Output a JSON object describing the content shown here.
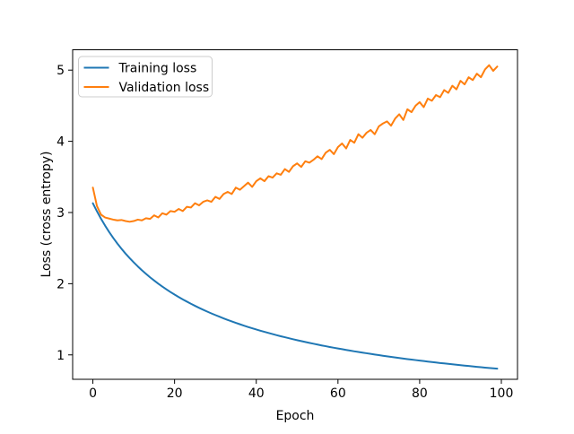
{
  "chart_data": {
    "type": "line",
    "title": "",
    "xlabel": "Epoch",
    "ylabel": "Loss (cross entropy)",
    "xlim": [
      -4.95,
      103.95
    ],
    "ylim": [
      0.657,
      5.286
    ],
    "xticks": [
      0,
      20,
      40,
      60,
      80,
      100
    ],
    "yticks": [
      1,
      2,
      3,
      4,
      5
    ],
    "grid": false,
    "legend_position": "upper left",
    "x": [
      0,
      1,
      2,
      3,
      4,
      5,
      6,
      7,
      8,
      9,
      10,
      11,
      12,
      13,
      14,
      15,
      16,
      17,
      18,
      19,
      20,
      21,
      22,
      23,
      24,
      25,
      26,
      27,
      28,
      29,
      30,
      31,
      32,
      33,
      34,
      35,
      36,
      37,
      38,
      39,
      40,
      41,
      42,
      43,
      44,
      45,
      46,
      47,
      48,
      49,
      50,
      51,
      52,
      53,
      54,
      55,
      56,
      57,
      58,
      59,
      60,
      61,
      62,
      63,
      64,
      65,
      66,
      67,
      68,
      69,
      70,
      71,
      72,
      73,
      74,
      75,
      76,
      77,
      78,
      79,
      80,
      81,
      82,
      83,
      84,
      85,
      86,
      87,
      88,
      89,
      90,
      91,
      92,
      93,
      94,
      95,
      96,
      97,
      98,
      99
    ],
    "series": [
      {
        "name": "Training loss",
        "color": "#1f77b4",
        "values": [
          3.13,
          3.017,
          2.912,
          2.815,
          2.725,
          2.642,
          2.564,
          2.492,
          2.423,
          2.36,
          2.3,
          2.243,
          2.189,
          2.139,
          2.09,
          2.045,
          2.001,
          1.96,
          1.921,
          1.883,
          1.847,
          1.813,
          1.78,
          1.749,
          1.718,
          1.689,
          1.661,
          1.634,
          1.608,
          1.583,
          1.559,
          1.536,
          1.513,
          1.491,
          1.47,
          1.45,
          1.43,
          1.411,
          1.392,
          1.374,
          1.357,
          1.34,
          1.324,
          1.308,
          1.292,
          1.277,
          1.262,
          1.248,
          1.234,
          1.22,
          1.207,
          1.194,
          1.181,
          1.169,
          1.157,
          1.145,
          1.133,
          1.122,
          1.111,
          1.1,
          1.09,
          1.08,
          1.07,
          1.06,
          1.05,
          1.041,
          1.032,
          1.023,
          1.014,
          1.005,
          0.997,
          0.988,
          0.98,
          0.972,
          0.964,
          0.956,
          0.949,
          0.941,
          0.934,
          0.927,
          0.92,
          0.913,
          0.906,
          0.899,
          0.893,
          0.886,
          0.88,
          0.874,
          0.868,
          0.861,
          0.855,
          0.849,
          0.844,
          0.838,
          0.832,
          0.827,
          0.821,
          0.816,
          0.811,
          0.806
        ]
      },
      {
        "name": "Validation loss",
        "color": "#ff7f0e",
        "values": [
          3.35,
          3.09,
          2.97,
          2.93,
          2.915,
          2.9,
          2.89,
          2.895,
          2.88,
          2.87,
          2.88,
          2.9,
          2.89,
          2.92,
          2.91,
          2.96,
          2.93,
          2.99,
          2.97,
          3.02,
          3.01,
          3.05,
          3.02,
          3.08,
          3.07,
          3.13,
          3.1,
          3.15,
          3.17,
          3.15,
          3.22,
          3.19,
          3.26,
          3.29,
          3.26,
          3.35,
          3.32,
          3.37,
          3.42,
          3.36,
          3.44,
          3.48,
          3.44,
          3.51,
          3.49,
          3.55,
          3.53,
          3.61,
          3.57,
          3.65,
          3.69,
          3.64,
          3.72,
          3.7,
          3.74,
          3.79,
          3.75,
          3.84,
          3.88,
          3.82,
          3.92,
          3.97,
          3.9,
          4.02,
          3.98,
          4.1,
          4.05,
          4.12,
          4.16,
          4.1,
          4.21,
          4.25,
          4.28,
          4.22,
          4.32,
          4.38,
          4.3,
          4.45,
          4.41,
          4.5,
          4.55,
          4.48,
          4.6,
          4.57,
          4.65,
          4.62,
          4.72,
          4.68,
          4.78,
          4.73,
          4.85,
          4.8,
          4.9,
          4.86,
          4.95,
          4.9,
          5.01,
          5.07,
          4.99,
          5.05
        ]
      }
    ]
  }
}
